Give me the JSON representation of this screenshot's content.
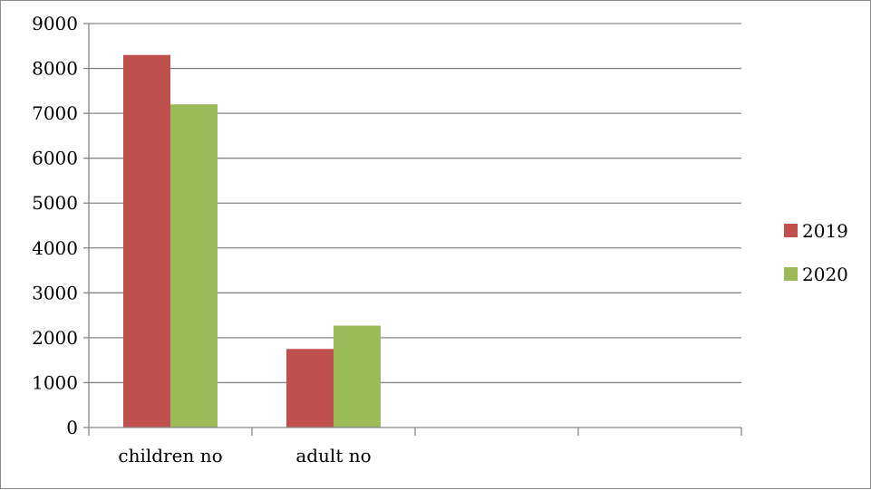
{
  "chart_data": {
    "type": "bar",
    "title": "",
    "xlabel": "",
    "ylabel": "",
    "categories": [
      "children no",
      "adult no",
      "",
      ""
    ],
    "series": [
      {
        "name": "2019",
        "color": "#c0504d",
        "values": [
          8300,
          1750,
          null,
          null
        ]
      },
      {
        "name": "2020",
        "color": "#9bbb59",
        "values": [
          7200,
          2270,
          null,
          null
        ]
      }
    ],
    "ylim": [
      0,
      9000
    ],
    "yticks": [
      "0",
      "1000",
      "2000",
      "3000",
      "4000",
      "5000",
      "6000",
      "7000",
      "8000",
      "9000"
    ],
    "grid": true,
    "gridline_color": "#868686",
    "legend_position": "right"
  }
}
